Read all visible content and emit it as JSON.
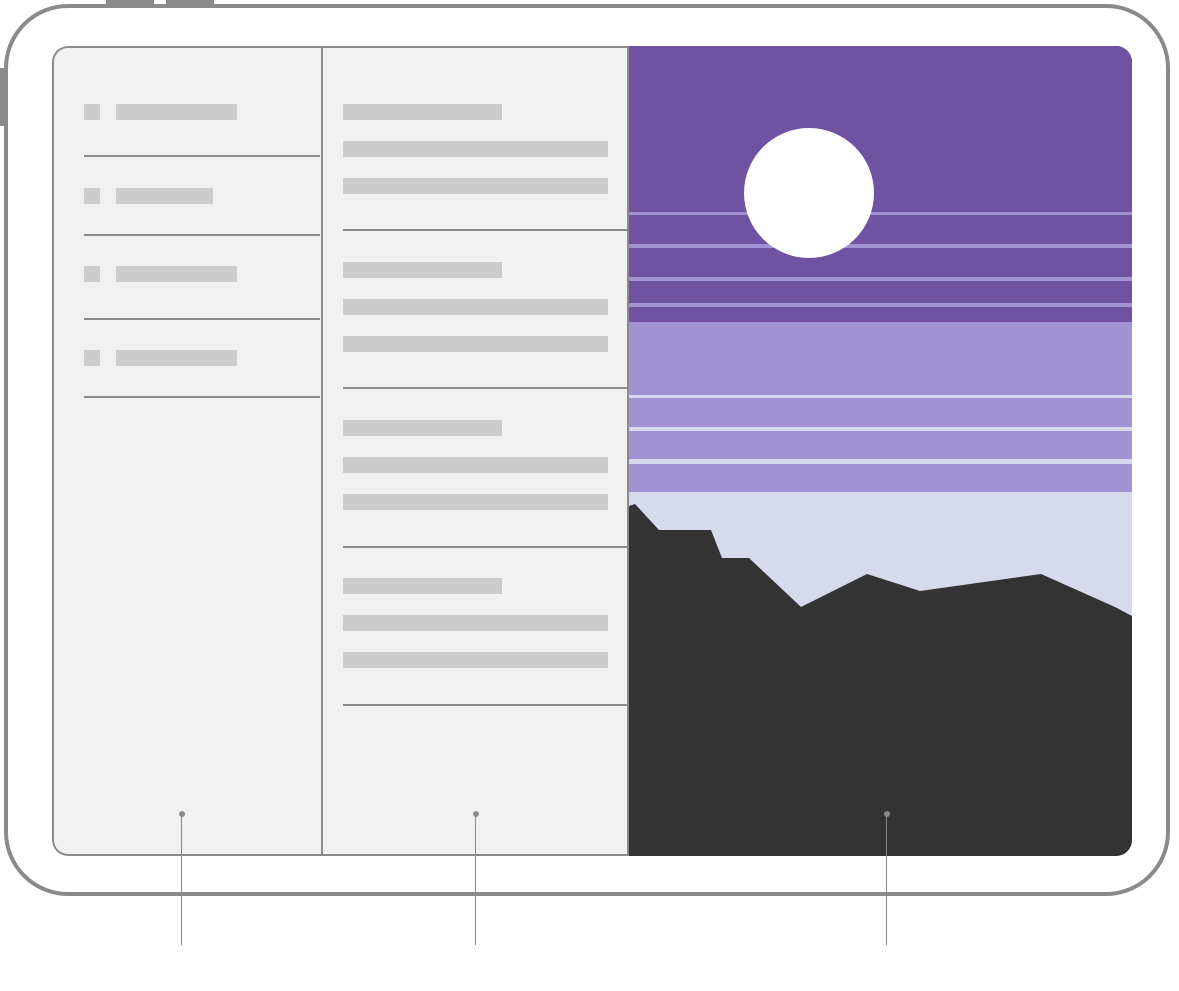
{
  "device": {
    "frame_color": "#8a8a8a",
    "screen_bg": "#f1f1f1"
  },
  "primary_column": {
    "rows": 4,
    "placeholder_color": "#cccccc"
  },
  "supplementary_column": {
    "rows": 4,
    "placeholder_color": "#cccccc"
  },
  "secondary_column": {
    "sky_color": "#6f52a2",
    "haze_color": "#a192d3",
    "light_color": "#d7d9ec",
    "mountain_color": "#333333",
    "sun_color": "#ffffff"
  }
}
